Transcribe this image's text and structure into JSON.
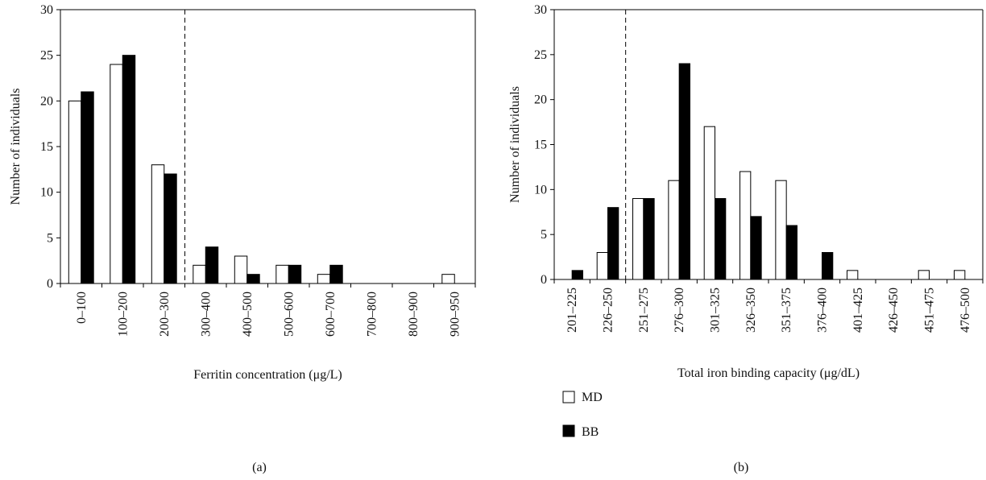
{
  "chart_data": [
    {
      "type": "bar",
      "panel_label": "(a)",
      "xlabel": "Ferritin concentration (μg/L)",
      "ylabel": "Number of individuals",
      "ylim": [
        0,
        30
      ],
      "yticks": [
        0,
        5,
        10,
        15,
        20,
        25,
        30
      ],
      "categories": [
        "0–100",
        "100–200",
        "200–300",
        "300–400",
        "400–500",
        "500–600",
        "600–700",
        "700–800",
        "800–900",
        "900–950"
      ],
      "series": [
        {
          "name": "MD",
          "color": "#ffffff",
          "values": [
            20,
            24,
            13,
            2,
            3,
            2,
            1,
            0,
            0,
            1
          ]
        },
        {
          "name": "BB",
          "color": "#000000",
          "values": [
            21,
            25,
            12,
            4,
            1,
            2,
            2,
            0,
            0,
            0
          ]
        }
      ],
      "threshold_between": [
        2,
        3
      ]
    },
    {
      "type": "bar",
      "panel_label": "(b)",
      "xlabel": "Total iron binding capacity (μg/dL)",
      "ylabel": "Number of individuals",
      "ylim": [
        0,
        30
      ],
      "yticks": [
        0,
        5,
        10,
        15,
        20,
        25,
        30
      ],
      "categories": [
        "201–225",
        "226–250",
        "251–275",
        "276–300",
        "301–325",
        "326–350",
        "351–375",
        "376–400",
        "401–425",
        "426–450",
        "451–475",
        "476–500"
      ],
      "series": [
        {
          "name": "MD",
          "color": "#ffffff",
          "values": [
            0,
            3,
            9,
            11,
            17,
            12,
            11,
            0,
            1,
            0,
            1,
            1
          ]
        },
        {
          "name": "BB",
          "color": "#000000",
          "values": [
            1,
            8,
            9,
            24,
            9,
            7,
            6,
            3,
            0,
            0,
            0,
            0
          ]
        }
      ],
      "threshold_between": [
        1,
        2
      ]
    }
  ],
  "legend": [
    {
      "label": "MD",
      "color": "#ffffff"
    },
    {
      "label": "BB",
      "color": "#000000"
    }
  ]
}
